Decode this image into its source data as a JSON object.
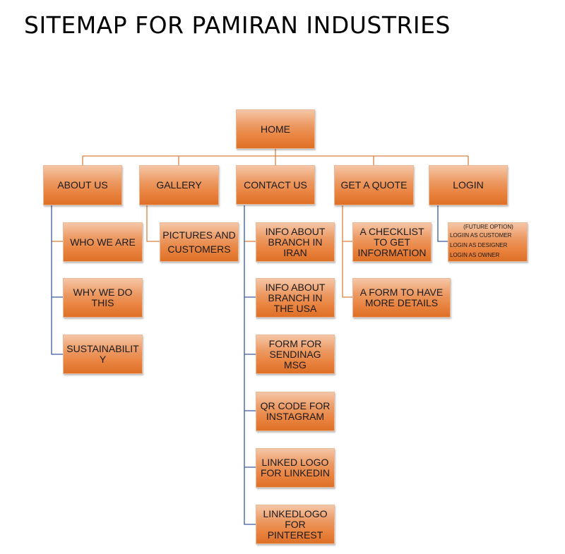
{
  "title": "SITEMAP FOR PAMIRAN INDUSTRIES",
  "colors": {
    "box_fill": "#e9833f",
    "line_orange": "#d9803f",
    "line_blue": "#3b5ba5"
  },
  "home": "HOME",
  "sections": {
    "about": {
      "label": "ABOUT US",
      "children": [
        "WHO WE ARE",
        "WHY WE DO THIS",
        "SUSTAINABILITY"
      ]
    },
    "gallery": {
      "label": "GALLERY",
      "children": [
        "PICTURES AND CUSTOMERS"
      ]
    },
    "contact": {
      "label": "CONTACT US",
      "children": [
        "INFO ABOUT BRANCH IN IRAN",
        "INFO ABOUT BRANCH IN THE USA",
        "FORM FOR SENDINAG MSG",
        "QR CODE FOR INSTAGRAM",
        "LINKED LOGO FOR LINKEDIN",
        "LINKEDLOGO FOR PINTEREST"
      ]
    },
    "quote": {
      "label": "GET A QUOTE",
      "children": [
        "A CHECKLIST TO GET INFORMATION",
        "A FORM  TO HAVE MORE DETAILS"
      ]
    },
    "login": {
      "label": "LOGIN",
      "note": "(FUTURE OPTION)",
      "options": [
        "LOGIIN AS CUSTOMER",
        "LOGIN AS DESIGNER",
        "LOGIN AS OWNER"
      ]
    }
  }
}
